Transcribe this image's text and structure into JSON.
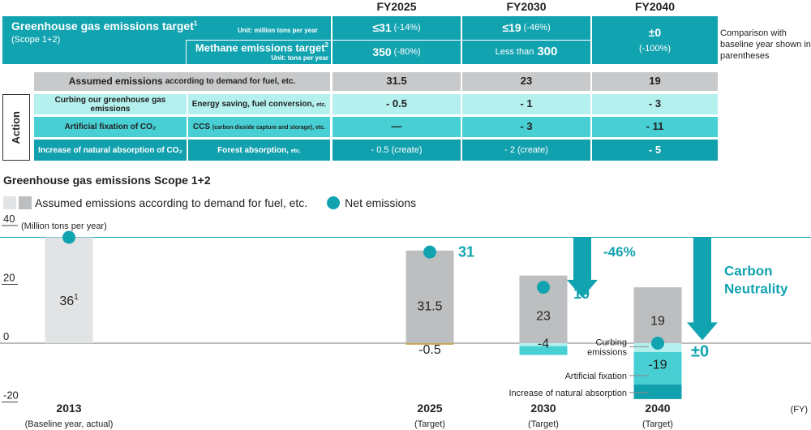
{
  "table": {
    "years": [
      "FY2025",
      "FY2030",
      "FY2040"
    ],
    "ghg_target_title": "Greenhouse gas emissions target",
    "ghg_target_sup": "1",
    "scope": "(Scope 1+2)",
    "ghg_unit": "Unit: million tons per year",
    "ghg_values": [
      {
        "main": "≤31",
        "pct": "(-14%)"
      },
      {
        "main": "≤19",
        "pct": "(-46%)"
      }
    ],
    "methane_title": "Methane emissions target",
    "methane_sup": "2",
    "methane_unit": "Unit: tons per year",
    "methane_values": [
      {
        "main": "350",
        "pct": "(-80%)"
      },
      {
        "prefix": "Less than",
        "main": "300"
      }
    ],
    "fy2040_main": "±0",
    "fy2040_pct": "(-100%)",
    "comparison_note": "Comparison with baseline year shown in parentheses",
    "assumed_label": "Assumed emissions",
    "assumed_suffix": "according to demand for fuel, etc.",
    "assumed_values": [
      "31.5",
      "23",
      "19"
    ],
    "action_label": "Action",
    "rows": [
      {
        "category": "Curbing our greenhouse gas emissions",
        "method": "Energy saving, fuel conversion,",
        "method_etc": "etc.",
        "values": [
          "- 0.5",
          "- 1",
          "- 3"
        ]
      },
      {
        "category": "Artificial fixation of CO₂",
        "method": "CCS",
        "method_small": "(carbon dioxide capture and storage), etc.",
        "values": [
          "—",
          "- 3",
          "- 11"
        ]
      },
      {
        "category": "Increase of natural absorption of CO₂",
        "method": "Forest absorption,",
        "method_etc": "etc.",
        "values": [
          "- 0.5 (create)",
          "- 2 (create)",
          "- 5"
        ]
      }
    ]
  },
  "chart_data": {
    "type": "bar",
    "title": "Greenhouse gas emissions Scope 1+2",
    "legend": [
      {
        "label": "Assumed emissions according to demand for fuel, etc.",
        "colors": [
          "#e1e3e5",
          "#bcbec0"
        ]
      },
      {
        "label": "Net emissions",
        "color": "#12a3b1"
      }
    ],
    "ylabel": "(Million tons per year)",
    "xunit": "(FY)",
    "ylim": [
      -20,
      40
    ],
    "yticks": [
      40,
      20,
      0,
      -20
    ],
    "target_line": 36,
    "categories": [
      {
        "year": "2013",
        "sub": "(Baseline year, actual)"
      },
      {
        "year": "2025",
        "sub": "(Target)"
      },
      {
        "year": "2030",
        "sub": "(Target)"
      },
      {
        "year": "2040",
        "sub": "(Target)"
      }
    ],
    "assumed": [
      36,
      31.5,
      23,
      19
    ],
    "assumed_labels": [
      "36",
      "31.5",
      "23",
      "19"
    ],
    "baseline_sup": "1",
    "net": [
      36,
      31,
      19,
      0
    ],
    "net_labels": [
      "",
      "31",
      "19",
      "±0"
    ],
    "negatives": [
      {
        "category": "2025",
        "segments": [
          {
            "name": "Curbing emissions",
            "value": -0.5
          }
        ],
        "label": "-0.5"
      },
      {
        "category": "2030",
        "segments": [
          {
            "name": "Curbing emissions",
            "value": -1
          },
          {
            "name": "Artificial fixation",
            "value": -3
          }
        ],
        "label": "-4"
      },
      {
        "category": "2040",
        "segments": [
          {
            "name": "Curbing emissions",
            "value": -3
          },
          {
            "name": "Artificial fixation",
            "value": -11
          },
          {
            "name": "Increase of natural absorption",
            "value": -5
          }
        ],
        "label": "-19"
      }
    ],
    "segment_labels": [
      "Curbing emissions",
      "Artificial fixation",
      "Increase of natural absorption"
    ],
    "annotations": {
      "reduction": "-46%",
      "neutral": "Carbon Neutrality"
    },
    "colors": {
      "baseline": "#e1e3e5",
      "assumed": "#bcbec0",
      "teal": "#12a3b1",
      "curbing": "#b3f0ee",
      "fixation": "#47cfd3",
      "natural": "#11a0ad",
      "neg2025": "#c8a24a"
    }
  }
}
